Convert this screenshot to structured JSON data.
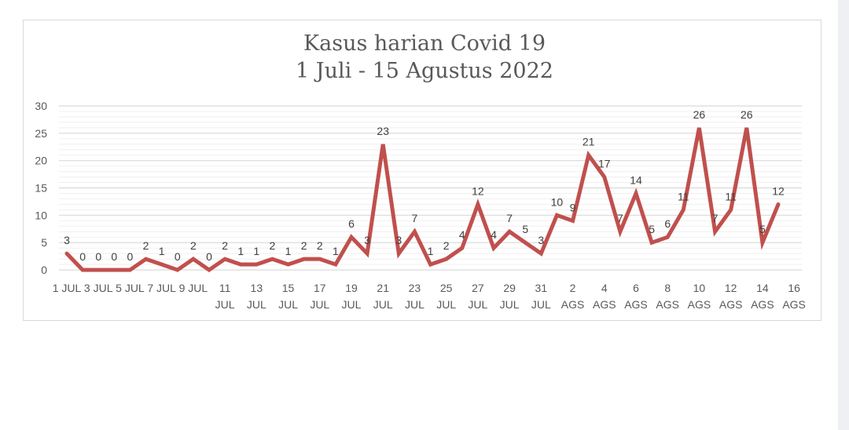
{
  "chart_data": {
    "type": "line",
    "title": "Kasus harian Covid 19",
    "subtitle": "1 Juli - 15 Agustus 2022",
    "xlabel": "",
    "ylabel": "",
    "ylim": [
      0,
      30
    ],
    "yticks": [
      0,
      5,
      10,
      15,
      20,
      25,
      30
    ],
    "grid": true,
    "legend": null,
    "line_color": "#c0504d",
    "x": [
      "1 JUL",
      "2 JUL",
      "3 JUL",
      "4 JUL",
      "5 JUL",
      "6 JUL",
      "7 JUL",
      "8 JUL",
      "9 JUL",
      "10 JUL",
      "11 JUL",
      "12 JUL",
      "13 JUL",
      "14 JUL",
      "15 JUL",
      "16 JUL",
      "17 JUL",
      "18 JUL",
      "19 JUL",
      "20 JUL",
      "21 JUL",
      "22 JUL",
      "23 JUL",
      "24 JUL",
      "25 JUL",
      "26 JUL",
      "27 JUL",
      "28 JUL",
      "29 JUL",
      "30 JUL",
      "31 JUL",
      "1 AGS",
      "2 AGS",
      "3 AGS",
      "4 AGS",
      "5 AGS",
      "6 AGS",
      "7 AGS",
      "8 AGS",
      "9 AGS",
      "10 AGS",
      "11 AGS",
      "12 AGS",
      "13 AGS",
      "14 AGS",
      "15 AGS"
    ],
    "values": [
      3,
      0,
      0,
      0,
      0,
      2,
      1,
      0,
      2,
      0,
      2,
      1,
      1,
      2,
      1,
      2,
      2,
      1,
      6,
      3,
      23,
      3,
      7,
      1,
      2,
      4,
      12,
      4,
      7,
      5,
      3,
      10,
      9,
      21,
      17,
      7,
      14,
      5,
      6,
      11,
      26,
      7,
      11,
      26,
      5,
      12
    ],
    "x_tick_labels": [
      {
        "line1": "1 JUL",
        "line2": ""
      },
      {
        "line1": "3 JUL",
        "line2": ""
      },
      {
        "line1": "5 JUL",
        "line2": ""
      },
      {
        "line1": "7 JUL",
        "line2": ""
      },
      {
        "line1": "9 JUL",
        "line2": ""
      },
      {
        "line1": "11",
        "line2": "JUL"
      },
      {
        "line1": "13",
        "line2": "JUL"
      },
      {
        "line1": "15",
        "line2": "JUL"
      },
      {
        "line1": "17",
        "line2": "JUL"
      },
      {
        "line1": "19",
        "line2": "JUL"
      },
      {
        "line1": "21",
        "line2": "JUL"
      },
      {
        "line1": "23",
        "line2": "JUL"
      },
      {
        "line1": "25",
        "line2": "JUL"
      },
      {
        "line1": "27",
        "line2": "JUL"
      },
      {
        "line1": "29",
        "line2": "JUL"
      },
      {
        "line1": "31",
        "line2": "JUL"
      },
      {
        "line1": "2",
        "line2": "AGS"
      },
      {
        "line1": "4",
        "line2": "AGS"
      },
      {
        "line1": "6",
        "line2": "AGS"
      },
      {
        "line1": "8",
        "line2": "AGS"
      },
      {
        "line1": "10",
        "line2": "AGS"
      },
      {
        "line1": "12",
        "line2": "AGS"
      },
      {
        "line1": "14",
        "line2": "AGS"
      },
      {
        "line1": "16",
        "line2": "AGS"
      }
    ],
    "data_labels_shown": true
  }
}
